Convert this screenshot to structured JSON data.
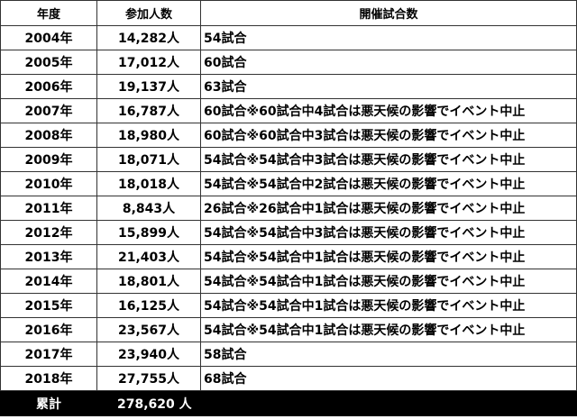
{
  "headers": [
    "年度",
    "参加人数",
    "開催試合数"
  ],
  "rows": [
    [
      "2004年",
      "14,282人",
      "54試合"
    ],
    [
      "2005年",
      "17,012人",
      "60試合"
    ],
    [
      "2006年",
      "19,137人",
      "63試合"
    ],
    [
      "2007年",
      "16,787人",
      "60試合※60試合中4試合は悪天候の影響でイベント中止"
    ],
    [
      "2008年",
      "18,980人",
      "60試合※60試合中3試合は悪天候の影響でイベント中止"
    ],
    [
      "2009年",
      "18,071人",
      "54試合※54試合中3試合は悪天候の影響でイベント中止"
    ],
    [
      "2010年",
      "18,018人",
      "54試合※54試合中2試合は悪天候の影響でイベント中止"
    ],
    [
      "2011年",
      "8,843人",
      "26試合※26試合中1試合は悪天候の影響でイベント中止"
    ],
    [
      "2012年",
      "15,899人",
      "54試合※54試合中3試合は悪天候の影響でイベント中止"
    ],
    [
      "2013年",
      "21,403人",
      "54試合※54試合中1試合は悪天候の影響でイベント中止"
    ],
    [
      "2014年",
      "18,801人",
      "54試合※54試合中1試合は悪天候の影響でイベント中止"
    ],
    [
      "2015年",
      "16,125人",
      "54試合※54試合中1試合は悪天候の影響でイベント中止"
    ],
    [
      "2016年",
      "23,567人",
      "54試合※54試合中1試合は悪天候の影響でイベント中止"
    ],
    [
      "2017年",
      "23,940人",
      "58試合"
    ],
    [
      "2018年",
      "27,755人",
      "68試合"
    ]
  ],
  "total": {
    "label": "累計",
    "value": "278,620 人"
  }
}
